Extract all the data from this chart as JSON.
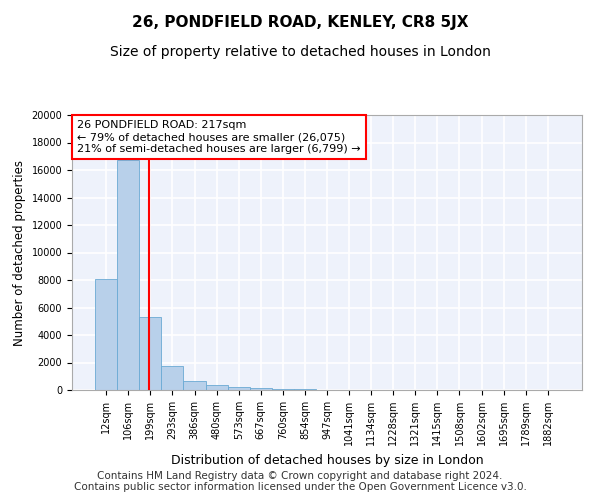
{
  "title": "26, PONDFIELD ROAD, KENLEY, CR8 5JX",
  "subtitle": "Size of property relative to detached houses in London",
  "xlabel": "Distribution of detached houses by size in London",
  "ylabel": "Number of detached properties",
  "bar_labels": [
    "12sqm",
    "106sqm",
    "199sqm",
    "293sqm",
    "386sqm",
    "480sqm",
    "573sqm",
    "667sqm",
    "760sqm",
    "854sqm",
    "947sqm",
    "1041sqm",
    "1134sqm",
    "1228sqm",
    "1321sqm",
    "1415sqm",
    "1508sqm",
    "1602sqm",
    "1695sqm",
    "1789sqm",
    "1882sqm"
  ],
  "bar_values": [
    8100,
    16700,
    5300,
    1750,
    650,
    350,
    200,
    110,
    70,
    50,
    35,
    28,
    22,
    17,
    13,
    10,
    8,
    7,
    6,
    5,
    4
  ],
  "bar_color": "#b8d0ea",
  "bar_edge_color": "#6aaad4",
  "annotation_text": "26 PONDFIELD ROAD: 217sqm\n← 79% of detached houses are smaller (26,075)\n21% of semi-detached houses are larger (6,799) →",
  "annotation_box_color": "white",
  "annotation_box_edge_color": "red",
  "vline_x": 1.95,
  "vline_color": "red",
  "ylim": [
    0,
    20000
  ],
  "background_color": "#eef2fb",
  "grid_color": "white",
  "footer_text": "Contains HM Land Registry data © Crown copyright and database right 2024.\nContains public sector information licensed under the Open Government Licence v3.0.",
  "title_fontsize": 11,
  "subtitle_fontsize": 10,
  "ylabel_fontsize": 8.5,
  "xlabel_fontsize": 9,
  "tick_fontsize": 7,
  "annotation_fontsize": 8,
  "footer_fontsize": 7.5
}
